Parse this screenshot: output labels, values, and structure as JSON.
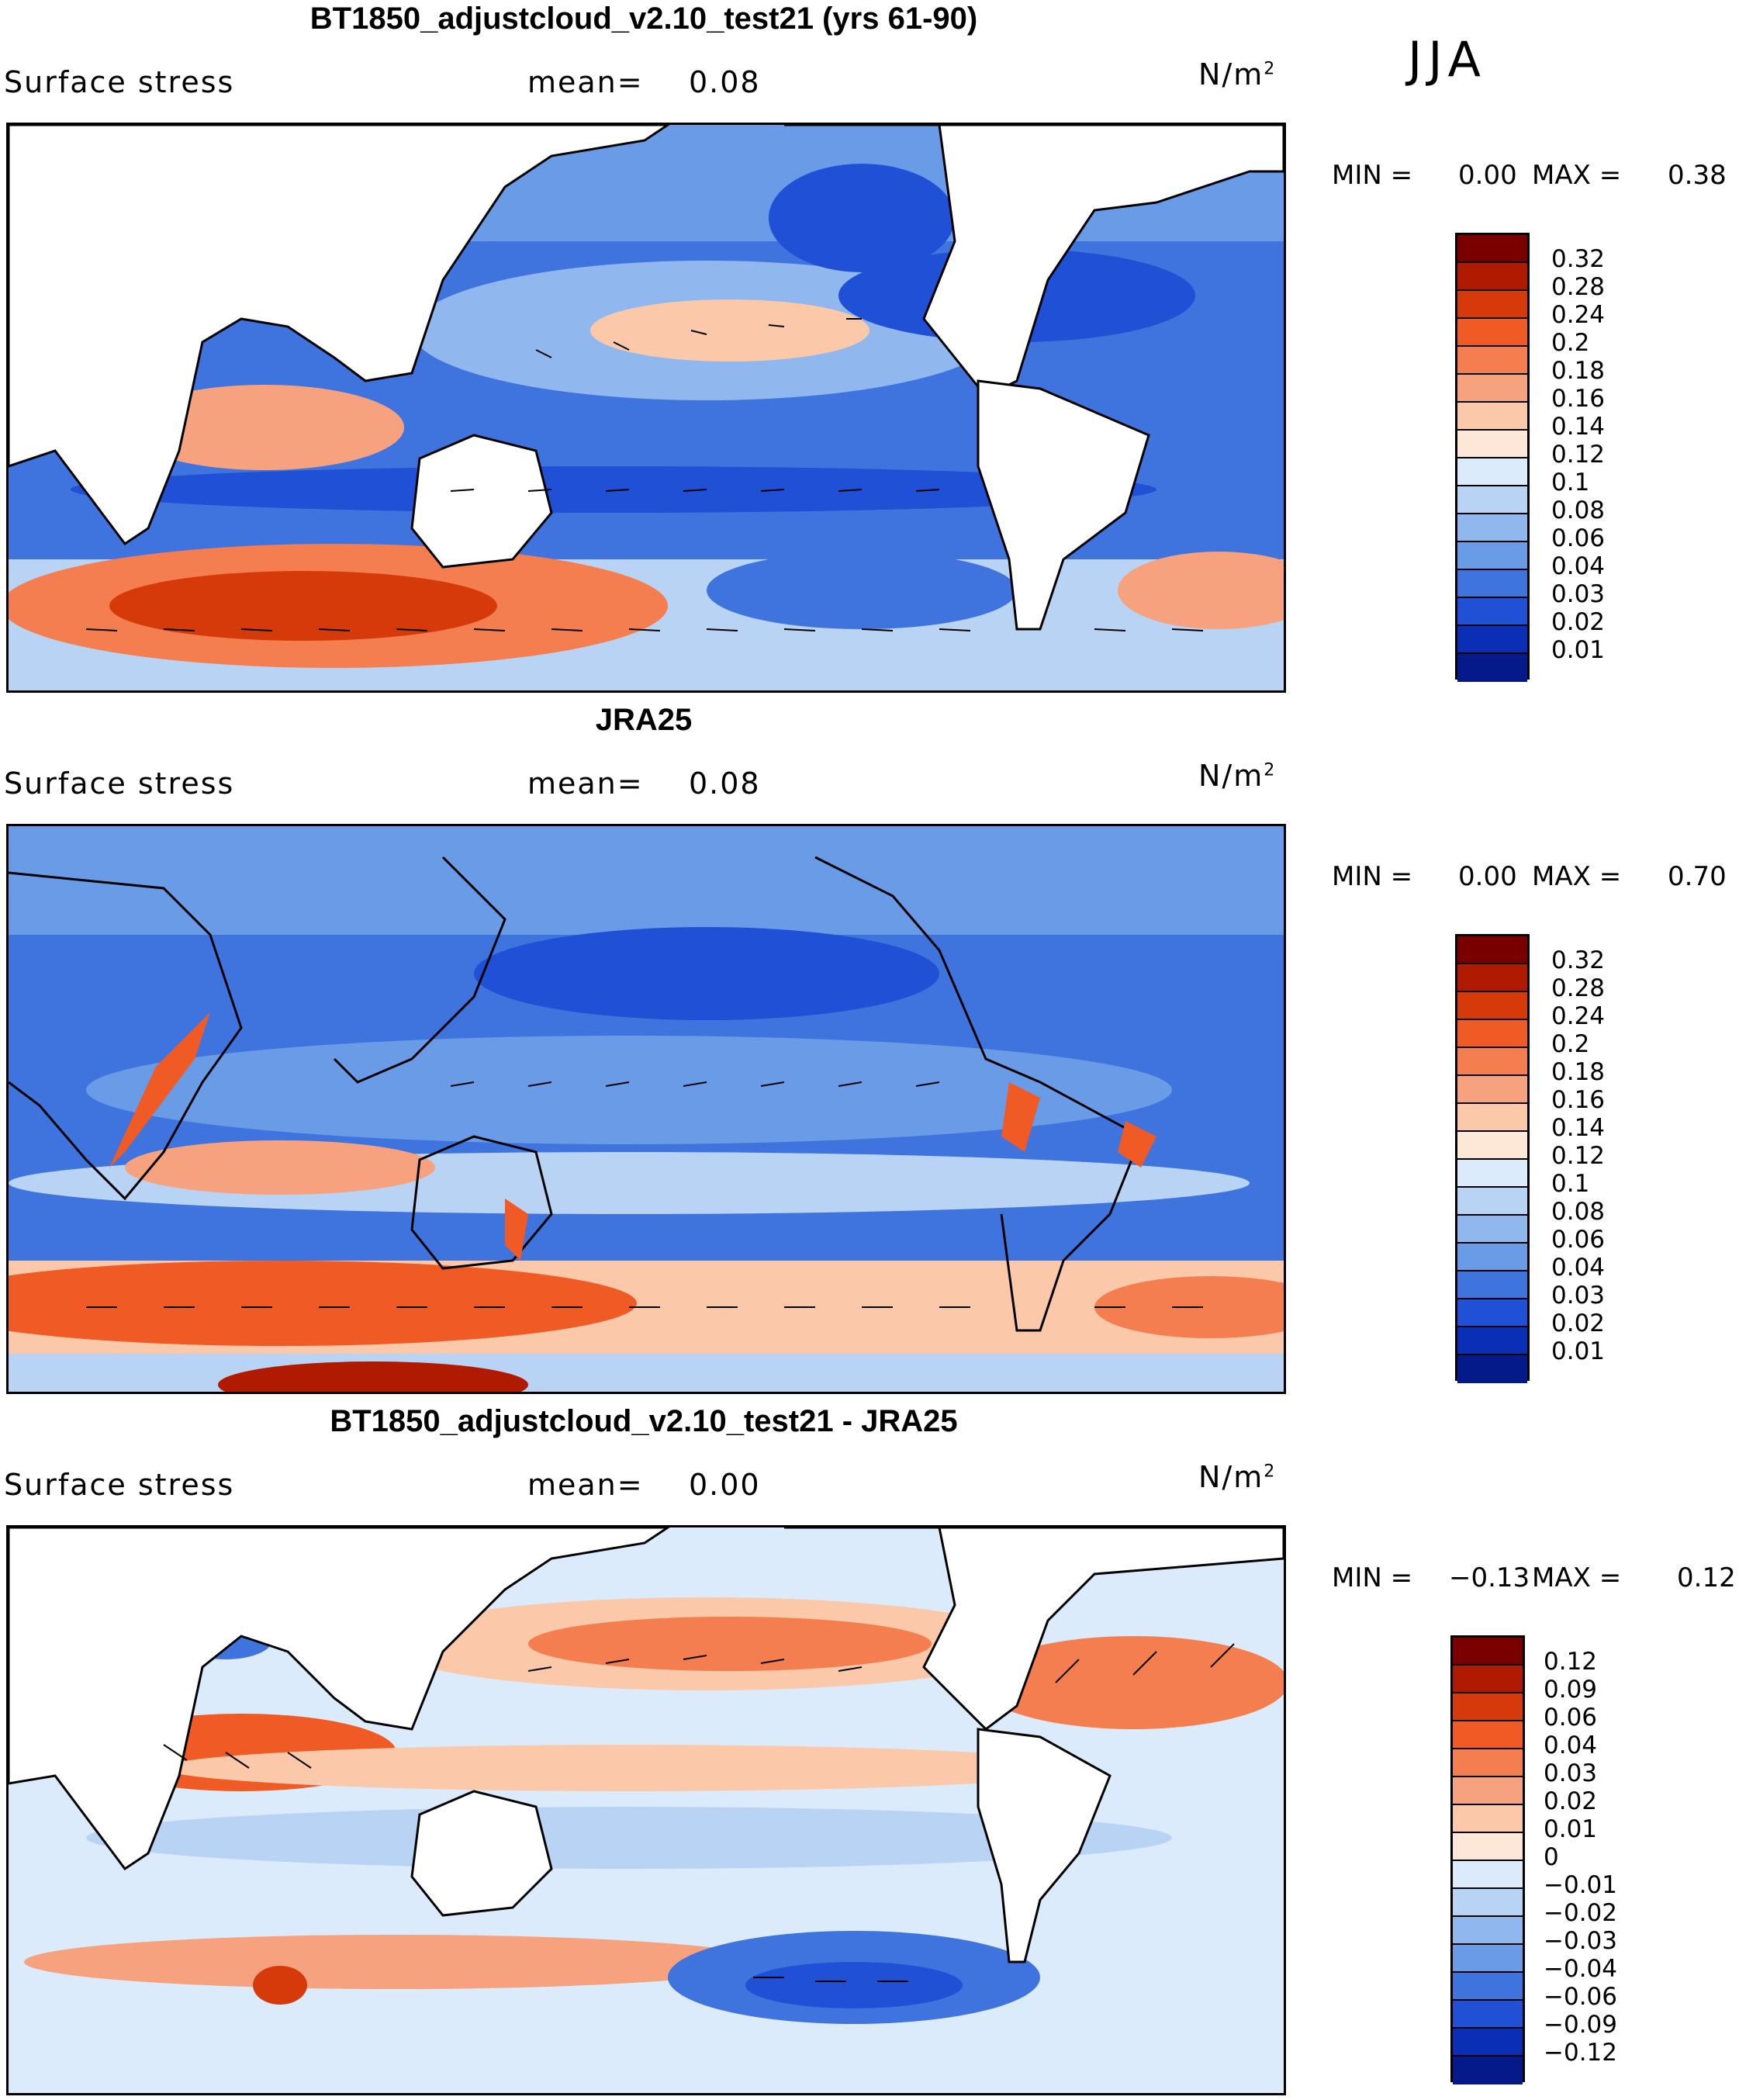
{
  "season": "JJA",
  "panels": [
    {
      "title": "BT1850_adjustcloud_v2.10_test21 (yrs 61-90)",
      "variable": "Surface stress",
      "mean_label": "mean=",
      "mean_value": "0.08",
      "units": "N/m",
      "units_exp": "2",
      "min_label": "MIN =",
      "min_value": "0.00",
      "max_label": "MAX =",
      "max_value": "0.38",
      "colorbar": {
        "colors": [
          "#7a0000",
          "#b01a00",
          "#d63a0b",
          "#ef5a25",
          "#f47e4f",
          "#f7a27e",
          "#fbc9aa",
          "#fde8d8",
          "#dcebfb",
          "#b9d3f5",
          "#91b8ee",
          "#6a9be6",
          "#3f74df",
          "#1f50d5",
          "#0b2eb6",
          "#051a8a"
        ],
        "labels": [
          "0.32",
          "0.28",
          "0.24",
          "0.2",
          "0.18",
          "0.16",
          "0.14",
          "0.12",
          "0.1",
          "0.08",
          "0.06",
          "0.04",
          "0.03",
          "0.02",
          "0.01"
        ]
      }
    },
    {
      "title": "JRA25",
      "variable": "Surface stress",
      "mean_label": "mean=",
      "mean_value": "0.08",
      "units": "N/m",
      "units_exp": "2",
      "min_label": "MIN =",
      "min_value": "0.00",
      "max_label": "MAX =",
      "max_value": "0.70",
      "colorbar": {
        "colors": [
          "#7a0000",
          "#b01a00",
          "#d63a0b",
          "#ef5a25",
          "#f47e4f",
          "#f7a27e",
          "#fbc9aa",
          "#fde8d8",
          "#dcebfb",
          "#b9d3f5",
          "#91b8ee",
          "#6a9be6",
          "#3f74df",
          "#1f50d5",
          "#0b2eb6",
          "#051a8a"
        ],
        "labels": [
          "0.32",
          "0.28",
          "0.24",
          "0.2",
          "0.18",
          "0.16",
          "0.14",
          "0.12",
          "0.1",
          "0.08",
          "0.06",
          "0.04",
          "0.03",
          "0.02",
          "0.01"
        ]
      }
    },
    {
      "title": "BT1850_adjustcloud_v2.10_test21 - JRA25",
      "variable": "Surface stress",
      "mean_label": "mean=",
      "mean_value": "0.00",
      "units": "N/m",
      "units_exp": "2",
      "min_label": "MIN =",
      "min_value": "−0.13",
      "max_label": "MAX =",
      "max_value": "0.12",
      "colorbar": {
        "colors": [
          "#7a0000",
          "#b01a00",
          "#d63a0b",
          "#ef5a25",
          "#f47e4f",
          "#f7a27e",
          "#fbc9aa",
          "#fde8d8",
          "#dcebfb",
          "#b9d3f5",
          "#91b8ee",
          "#6a9be6",
          "#3f74df",
          "#1f50d5",
          "#0b2eb6",
          "#051a8a"
        ],
        "labels": [
          "0.12",
          "0.09",
          "0.06",
          "0.04",
          "0.03",
          "0.02",
          "0.01",
          "0",
          "−0.01",
          "−0.02",
          "−0.03",
          "−0.04",
          "−0.06",
          "−0.09",
          "−0.12"
        ]
      }
    }
  ]
}
